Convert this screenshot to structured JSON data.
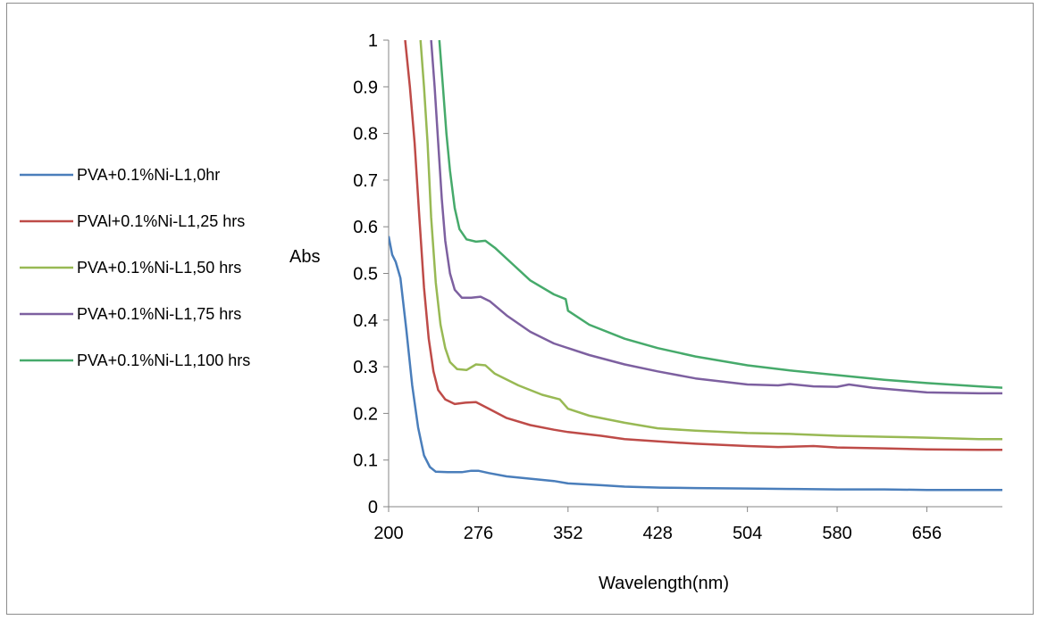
{
  "chart_data": {
    "type": "line",
    "title": "",
    "xlabel": "Wavelength(nm)",
    "ylabel": "Abs",
    "xlim": [
      200,
      720
    ],
    "ylim": [
      0,
      1
    ],
    "x_ticks": [
      200,
      276,
      352,
      428,
      504,
      580,
      656
    ],
    "y_ticks": [
      0,
      0.1,
      0.2,
      0.3,
      0.4,
      0.5,
      0.6,
      0.7,
      0.8,
      0.9,
      1
    ],
    "grid": false,
    "legend_position": "left",
    "series": [
      {
        "name": "PVA+0.1%Ni-L1,0hr",
        "color": "#4a7ebb",
        "points": [
          [
            200,
            0.58
          ],
          [
            203,
            0.54
          ],
          [
            206,
            0.525
          ],
          [
            210,
            0.49
          ],
          [
            215,
            0.38
          ],
          [
            220,
            0.26
          ],
          [
            225,
            0.17
          ],
          [
            230,
            0.11
          ],
          [
            235,
            0.085
          ],
          [
            240,
            0.075
          ],
          [
            250,
            0.074
          ],
          [
            262,
            0.074
          ],
          [
            270,
            0.077
          ],
          [
            276,
            0.077
          ],
          [
            285,
            0.072
          ],
          [
            300,
            0.065
          ],
          [
            320,
            0.06
          ],
          [
            340,
            0.055
          ],
          [
            352,
            0.05
          ],
          [
            380,
            0.046
          ],
          [
            400,
            0.043
          ],
          [
            430,
            0.041
          ],
          [
            460,
            0.04
          ],
          [
            504,
            0.039
          ],
          [
            540,
            0.038
          ],
          [
            580,
            0.037
          ],
          [
            620,
            0.037
          ],
          [
            656,
            0.036
          ],
          [
            700,
            0.036
          ],
          [
            720,
            0.036
          ]
        ]
      },
      {
        "name": "PVAl+0.1%Ni-L1,25 hrs",
        "color": "#be4b48",
        "points": [
          [
            214,
            1.0
          ],
          [
            218,
            0.9
          ],
          [
            222,
            0.78
          ],
          [
            226,
            0.62
          ],
          [
            230,
            0.47
          ],
          [
            234,
            0.36
          ],
          [
            238,
            0.29
          ],
          [
            242,
            0.25
          ],
          [
            248,
            0.23
          ],
          [
            256,
            0.22
          ],
          [
            265,
            0.223
          ],
          [
            274,
            0.224
          ],
          [
            285,
            0.21
          ],
          [
            300,
            0.19
          ],
          [
            320,
            0.175
          ],
          [
            340,
            0.165
          ],
          [
            352,
            0.16
          ],
          [
            380,
            0.152
          ],
          [
            400,
            0.145
          ],
          [
            428,
            0.14
          ],
          [
            460,
            0.135
          ],
          [
            504,
            0.13
          ],
          [
            530,
            0.128
          ],
          [
            560,
            0.13
          ],
          [
            580,
            0.127
          ],
          [
            620,
            0.125
          ],
          [
            656,
            0.123
          ],
          [
            700,
            0.122
          ],
          [
            720,
            0.122
          ]
        ]
      },
      {
        "name": "PVA+0.1%Ni-L1,50 hrs",
        "color": "#98b954",
        "points": [
          [
            227,
            1.0
          ],
          [
            230,
            0.9
          ],
          [
            233,
            0.78
          ],
          [
            236,
            0.62
          ],
          [
            240,
            0.48
          ],
          [
            244,
            0.39
          ],
          [
            248,
            0.34
          ],
          [
            252,
            0.31
          ],
          [
            258,
            0.295
          ],
          [
            266,
            0.293
          ],
          [
            274,
            0.305
          ],
          [
            282,
            0.303
          ],
          [
            290,
            0.285
          ],
          [
            310,
            0.26
          ],
          [
            330,
            0.24
          ],
          [
            345,
            0.23
          ],
          [
            352,
            0.21
          ],
          [
            370,
            0.195
          ],
          [
            400,
            0.18
          ],
          [
            428,
            0.168
          ],
          [
            460,
            0.163
          ],
          [
            504,
            0.158
          ],
          [
            540,
            0.156
          ],
          [
            580,
            0.152
          ],
          [
            620,
            0.15
          ],
          [
            656,
            0.148
          ],
          [
            700,
            0.145
          ],
          [
            720,
            0.145
          ]
        ]
      },
      {
        "name": "PVA+0.1%Ni-L1,75 hrs",
        "color": "#7d60a0",
        "points": [
          [
            236,
            1.0
          ],
          [
            239,
            0.9
          ],
          [
            242,
            0.78
          ],
          [
            245,
            0.66
          ],
          [
            248,
            0.57
          ],
          [
            252,
            0.5
          ],
          [
            256,
            0.465
          ],
          [
            262,
            0.448
          ],
          [
            270,
            0.448
          ],
          [
            278,
            0.45
          ],
          [
            286,
            0.44
          ],
          [
            300,
            0.41
          ],
          [
            320,
            0.375
          ],
          [
            340,
            0.35
          ],
          [
            352,
            0.34
          ],
          [
            370,
            0.325
          ],
          [
            400,
            0.305
          ],
          [
            428,
            0.29
          ],
          [
            460,
            0.275
          ],
          [
            504,
            0.262
          ],
          [
            530,
            0.26
          ],
          [
            540,
            0.263
          ],
          [
            560,
            0.258
          ],
          [
            580,
            0.257
          ],
          [
            590,
            0.262
          ],
          [
            610,
            0.255
          ],
          [
            656,
            0.245
          ],
          [
            700,
            0.243
          ],
          [
            720,
            0.243
          ]
        ]
      },
      {
        "name": "PVA+0.1%Ni-L1,100 hrs",
        "color": "#46aa6b",
        "points": [
          [
            243,
            1.0
          ],
          [
            246,
            0.9
          ],
          [
            249,
            0.8
          ],
          [
            252,
            0.72
          ],
          [
            256,
            0.64
          ],
          [
            260,
            0.595
          ],
          [
            266,
            0.573
          ],
          [
            274,
            0.568
          ],
          [
            282,
            0.57
          ],
          [
            290,
            0.555
          ],
          [
            305,
            0.52
          ],
          [
            320,
            0.485
          ],
          [
            340,
            0.455
          ],
          [
            350,
            0.445
          ],
          [
            352,
            0.42
          ],
          [
            370,
            0.39
          ],
          [
            400,
            0.36
          ],
          [
            428,
            0.34
          ],
          [
            460,
            0.322
          ],
          [
            504,
            0.303
          ],
          [
            540,
            0.292
          ],
          [
            580,
            0.282
          ],
          [
            620,
            0.272
          ],
          [
            656,
            0.265
          ],
          [
            700,
            0.258
          ],
          [
            720,
            0.255
          ]
        ]
      }
    ]
  }
}
